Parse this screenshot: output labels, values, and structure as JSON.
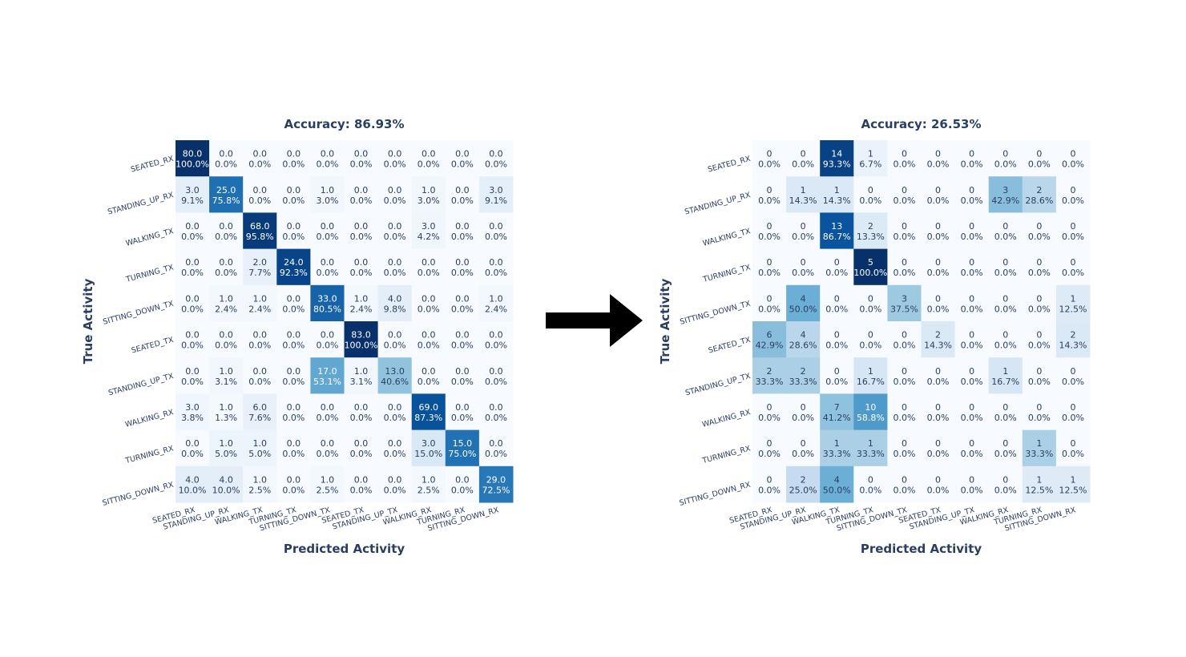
{
  "arrow_icon": "right-arrow-icon",
  "colorscale": [
    "#f7fbff",
    "#deebf7",
    "#c6dbef",
    "#9ecae1",
    "#6baed6",
    "#4292c6",
    "#2171b5",
    "#08519c",
    "#08306b"
  ],
  "chart_data": [
    {
      "type": "heatmap",
      "title": "Accuracy: 86.93%",
      "xlabel": "Predicted Activity",
      "ylabel": "True Activity",
      "x_categories": [
        "SEATED_RX",
        "STANDING_UP_RX",
        "WALKING_TX",
        "TURNING_TX",
        "SITTING_DOWN_TX",
        "SEATED_TX",
        "STANDING_UP_TX",
        "WALKING_RX",
        "TURNING_RX",
        "SITTING_DOWN_RX"
      ],
      "y_categories": [
        "SEATED_RX",
        "STANDING_UP_RX",
        "WALKING_TX",
        "TURNING_TX",
        "SITTING_DOWN_TX",
        "SEATED_TX",
        "STANDING_UP_TX",
        "WALKING_RX",
        "TURNING_RX",
        "SITTING_DOWN_RX"
      ],
      "counts": [
        [
          "80.0",
          "0.0",
          "0.0",
          "0.0",
          "0.0",
          "0.0",
          "0.0",
          "0.0",
          "0.0",
          "0.0"
        ],
        [
          "3.0",
          "25.0",
          "0.0",
          "0.0",
          "1.0",
          "0.0",
          "0.0",
          "1.0",
          "0.0",
          "3.0"
        ],
        [
          "0.0",
          "0.0",
          "68.0",
          "0.0",
          "0.0",
          "0.0",
          "0.0",
          "3.0",
          "0.0",
          "0.0"
        ],
        [
          "0.0",
          "0.0",
          "2.0",
          "24.0",
          "0.0",
          "0.0",
          "0.0",
          "0.0",
          "0.0",
          "0.0"
        ],
        [
          "0.0",
          "1.0",
          "1.0",
          "0.0",
          "33.0",
          "1.0",
          "4.0",
          "0.0",
          "0.0",
          "1.0"
        ],
        [
          "0.0",
          "0.0",
          "0.0",
          "0.0",
          "0.0",
          "83.0",
          "0.0",
          "0.0",
          "0.0",
          "0.0"
        ],
        [
          "0.0",
          "1.0",
          "0.0",
          "0.0",
          "17.0",
          "1.0",
          "13.0",
          "0.0",
          "0.0",
          "0.0"
        ],
        [
          "3.0",
          "1.0",
          "6.0",
          "0.0",
          "0.0",
          "0.0",
          "0.0",
          "69.0",
          "0.0",
          "0.0"
        ],
        [
          "0.0",
          "1.0",
          "1.0",
          "0.0",
          "0.0",
          "0.0",
          "0.0",
          "3.0",
          "15.0",
          "0.0"
        ],
        [
          "4.0",
          "4.0",
          "1.0",
          "0.0",
          "1.0",
          "0.0",
          "0.0",
          "1.0",
          "0.0",
          "29.0"
        ]
      ],
      "percentages": [
        [
          100.0,
          0.0,
          0.0,
          0.0,
          0.0,
          0.0,
          0.0,
          0.0,
          0.0,
          0.0
        ],
        [
          9.1,
          75.8,
          0.0,
          0.0,
          3.0,
          0.0,
          0.0,
          3.0,
          0.0,
          9.1
        ],
        [
          0.0,
          0.0,
          95.8,
          0.0,
          0.0,
          0.0,
          0.0,
          4.2,
          0.0,
          0.0
        ],
        [
          0.0,
          0.0,
          7.7,
          92.3,
          0.0,
          0.0,
          0.0,
          0.0,
          0.0,
          0.0
        ],
        [
          0.0,
          2.4,
          2.4,
          0.0,
          80.5,
          2.4,
          9.8,
          0.0,
          0.0,
          2.4
        ],
        [
          0.0,
          0.0,
          0.0,
          0.0,
          0.0,
          100.0,
          0.0,
          0.0,
          0.0,
          0.0
        ],
        [
          0.0,
          3.1,
          0.0,
          0.0,
          53.1,
          3.1,
          40.6,
          0.0,
          0.0,
          0.0
        ],
        [
          3.8,
          1.3,
          7.6,
          0.0,
          0.0,
          0.0,
          0.0,
          87.3,
          0.0,
          0.0
        ],
        [
          0.0,
          5.0,
          5.0,
          0.0,
          0.0,
          0.0,
          0.0,
          15.0,
          75.0,
          0.0
        ],
        [
          10.0,
          10.0,
          2.5,
          0.0,
          2.5,
          0.0,
          0.0,
          2.5,
          0.0,
          72.5
        ]
      ]
    },
    {
      "type": "heatmap",
      "title": "Accuracy: 26.53%",
      "xlabel": "Predicted Activity",
      "ylabel": "True Activity",
      "x_categories": [
        "SEATED_RX",
        "STANDING_UP_RX",
        "WALKING_TX",
        "TURNING_TX",
        "SITTING_DOWN_TX",
        "SEATED_TX",
        "STANDING_UP_TX",
        "WALKING_RX",
        "TURNING_RX",
        "SITTING_DOWN_RX"
      ],
      "y_categories": [
        "SEATED_RX",
        "STANDING_UP_RX",
        "WALKING_TX",
        "TURNING_TX",
        "SITTING_DOWN_TX",
        "SEATED_TX",
        "STANDING_UP_TX",
        "WALKING_RX",
        "TURNING_RX",
        "SITTING_DOWN_RX"
      ],
      "counts": [
        [
          "0",
          "0",
          "14",
          "1",
          "0",
          "0",
          "0",
          "0",
          "0",
          "0"
        ],
        [
          "0",
          "1",
          "1",
          "0",
          "0",
          "0",
          "0",
          "3",
          "2",
          "0"
        ],
        [
          "0",
          "0",
          "13",
          "2",
          "0",
          "0",
          "0",
          "0",
          "0",
          "0"
        ],
        [
          "0",
          "0",
          "0",
          "5",
          "0",
          "0",
          "0",
          "0",
          "0",
          "0"
        ],
        [
          "0",
          "4",
          "0",
          "0",
          "3",
          "0",
          "0",
          "0",
          "0",
          "1"
        ],
        [
          "6",
          "4",
          "0",
          "0",
          "0",
          "2",
          "0",
          "0",
          "0",
          "2"
        ],
        [
          "2",
          "2",
          "0",
          "1",
          "0",
          "0",
          "0",
          "1",
          "0",
          "0"
        ],
        [
          "0",
          "0",
          "7",
          "10",
          "0",
          "0",
          "0",
          "0",
          "0",
          "0"
        ],
        [
          "0",
          "0",
          "1",
          "1",
          "0",
          "0",
          "0",
          "0",
          "1",
          "0"
        ],
        [
          "0",
          "2",
          "4",
          "0",
          "0",
          "0",
          "0",
          "0",
          "1",
          "1"
        ]
      ],
      "percentages": [
        [
          0.0,
          0.0,
          93.3,
          6.7,
          0.0,
          0.0,
          0.0,
          0.0,
          0.0,
          0.0
        ],
        [
          0.0,
          14.3,
          14.3,
          0.0,
          0.0,
          0.0,
          0.0,
          42.9,
          28.6,
          0.0
        ],
        [
          0.0,
          0.0,
          86.7,
          13.3,
          0.0,
          0.0,
          0.0,
          0.0,
          0.0,
          0.0
        ],
        [
          0.0,
          0.0,
          0.0,
          100.0,
          0.0,
          0.0,
          0.0,
          0.0,
          0.0,
          0.0
        ],
        [
          0.0,
          50.0,
          0.0,
          0.0,
          37.5,
          0.0,
          0.0,
          0.0,
          0.0,
          12.5
        ],
        [
          42.9,
          28.6,
          0.0,
          0.0,
          0.0,
          14.3,
          0.0,
          0.0,
          0.0,
          14.3
        ],
        [
          33.3,
          33.3,
          0.0,
          16.7,
          0.0,
          0.0,
          0.0,
          16.7,
          0.0,
          0.0
        ],
        [
          0.0,
          0.0,
          41.2,
          58.8,
          0.0,
          0.0,
          0.0,
          0.0,
          0.0,
          0.0
        ],
        [
          0.0,
          0.0,
          33.3,
          33.3,
          0.0,
          0.0,
          0.0,
          0.0,
          33.3,
          0.0
        ],
        [
          0.0,
          25.0,
          50.0,
          0.0,
          0.0,
          0.0,
          0.0,
          0.0,
          12.5,
          12.5
        ]
      ]
    }
  ]
}
